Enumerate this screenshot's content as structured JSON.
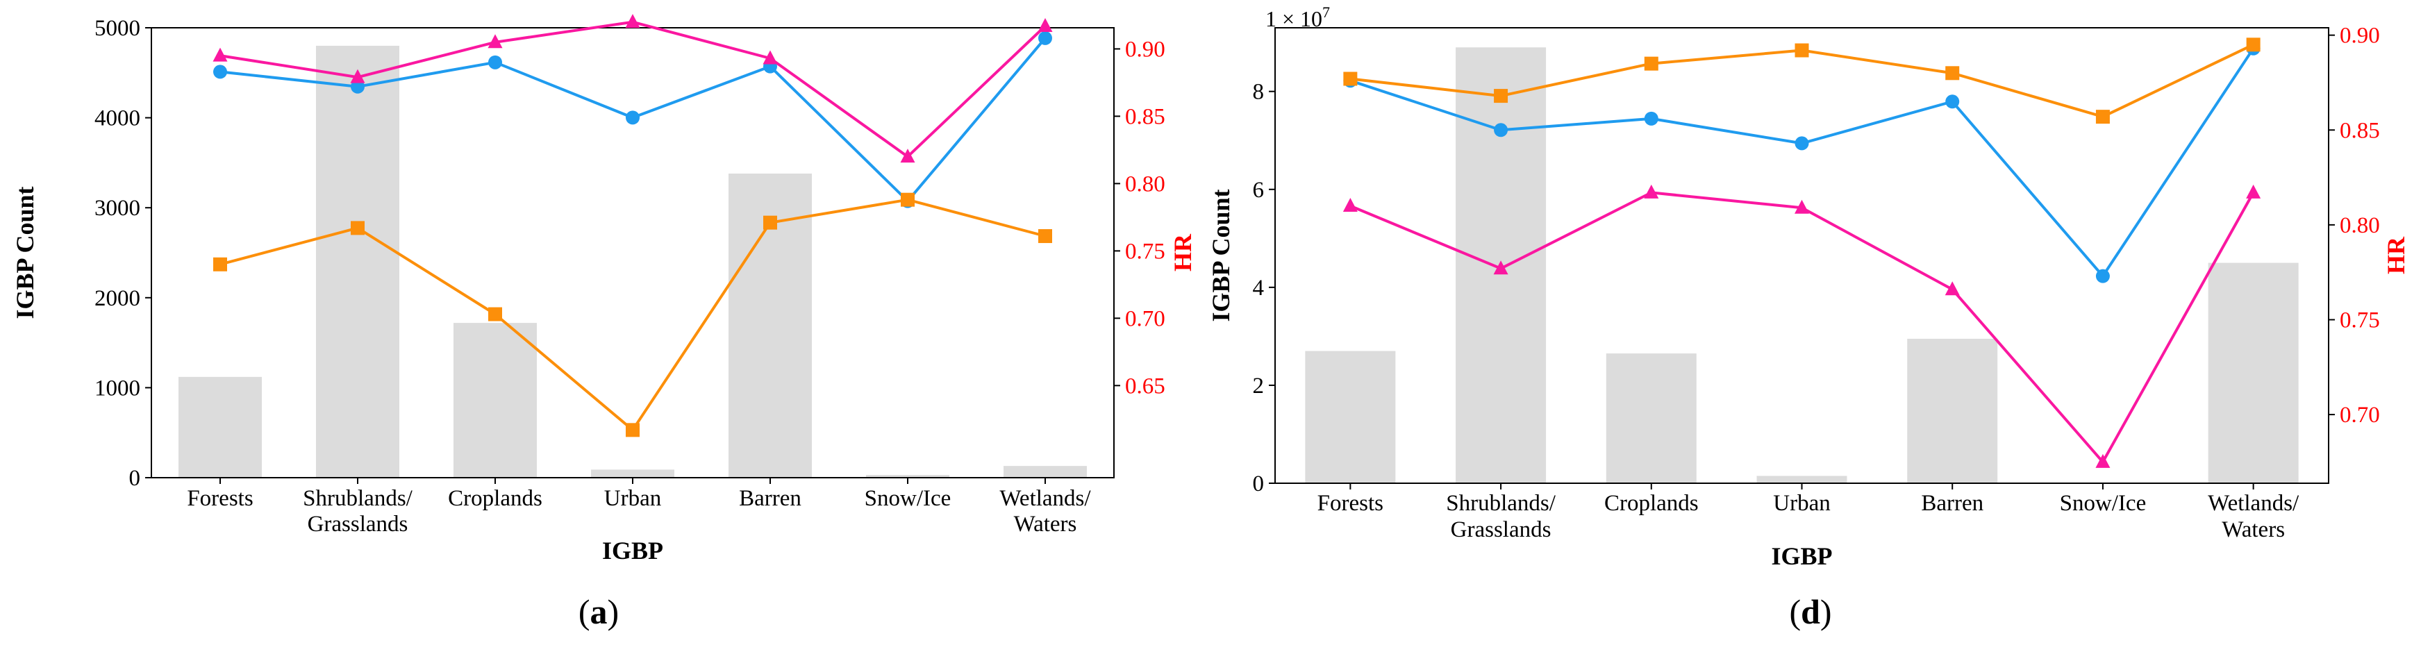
{
  "colors": {
    "bar": "#dcdcdc",
    "blue": "#1f9bef",
    "orange": "#fc8f0a",
    "magenta": "#fa17a0",
    "right_axis": "#ff0000"
  },
  "chart_data": [
    {
      "type": "bar+line",
      "panel": "a",
      "caption": {
        "open": "(",
        "letter": "a",
        "close": ")"
      },
      "xlabel": "IGBP",
      "ylabel": "IGBP Count",
      "y2label": "HR",
      "categories": [
        [
          "Forests"
        ],
        [
          "Shrublands/",
          "Grasslands"
        ],
        [
          "Croplands"
        ],
        [
          "Urban"
        ],
        [
          "Barren"
        ],
        [
          "Snow/Ice"
        ],
        [
          "Wetlands/",
          "Waters"
        ]
      ],
      "ylim": [
        0,
        5000
      ],
      "yticks": [
        0,
        1000,
        2000,
        3000,
        4000,
        5000
      ],
      "ytick_labels": [
        "0",
        "1000",
        "2000",
        "3000",
        "4000",
        "5000"
      ],
      "y2lim": [
        0.5816,
        0.9157
      ],
      "y2ticks": [
        0.65,
        0.7,
        0.75,
        0.8,
        0.85,
        0.9
      ],
      "y2tick_labels": [
        "0.65",
        "0.70",
        "0.75",
        "0.80",
        "0.85",
        "0.90"
      ],
      "counts": [
        1120,
        4800,
        1720,
        90,
        3380,
        30,
        130
      ],
      "series": [
        {
          "name": "blue",
          "marker": "circle",
          "values": [
            0.883,
            0.872,
            0.89,
            0.849,
            0.887,
            0.787,
            0.908
          ]
        },
        {
          "name": "orange",
          "marker": "square",
          "values": [
            0.74,
            0.767,
            0.703,
            0.617,
            0.771,
            0.788,
            0.761
          ]
        },
        {
          "name": "magenta",
          "marker": "triangle",
          "values": [
            0.895,
            0.879,
            0.905,
            0.92,
            0.893,
            0.82,
            0.917
          ]
        }
      ]
    },
    {
      "type": "bar+line",
      "panel": "d",
      "caption": {
        "open": "(",
        "letter": "d",
        "close": ")"
      },
      "xlabel": "IGBP",
      "ylabel": "IGBP Count",
      "y2label": "HR",
      "offset_text": "1 × 10",
      "offset_exp": "7",
      "categories": [
        [
          "Forests"
        ],
        [
          "Shrublands/",
          "Grasslands"
        ],
        [
          "Croplands"
        ],
        [
          "Urban"
        ],
        [
          "Barren"
        ],
        [
          "Snow/Ice"
        ],
        [
          "Wetlands/",
          "Waters"
        ]
      ],
      "ylim": [
        0,
        9.3
      ],
      "yticks": [
        0,
        2,
        4,
        6,
        8
      ],
      "ytick_labels": [
        "0",
        "2",
        "4",
        "6",
        "8"
      ],
      "y2lim": [
        0.6638,
        0.9039
      ],
      "y2ticks": [
        0.7,
        0.75,
        0.8,
        0.85,
        0.9
      ],
      "y2tick_labels": [
        "0.70",
        "0.75",
        "0.80",
        "0.85",
        "0.90"
      ],
      "counts": [
        2.7,
        8.9,
        2.65,
        0.15,
        2.95,
        0,
        4.5
      ],
      "series": [
        {
          "name": "blue",
          "marker": "circle",
          "values": [
            0.876,
            0.85,
            0.856,
            0.843,
            0.865,
            0.773,
            0.893
          ]
        },
        {
          "name": "orange",
          "marker": "square",
          "values": [
            0.877,
            0.868,
            0.885,
            0.892,
            0.88,
            0.857,
            0.895
          ]
        },
        {
          "name": "magenta",
          "marker": "triangle",
          "values": [
            0.81,
            0.777,
            0.817,
            0.809,
            0.766,
            0.675,
            0.817
          ]
        }
      ]
    }
  ]
}
